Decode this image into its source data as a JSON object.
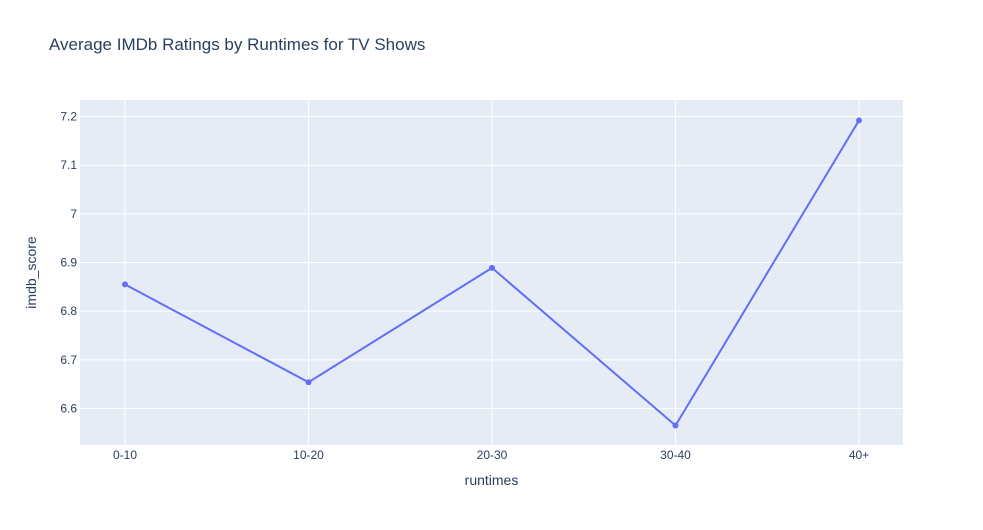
{
  "chart_data": {
    "type": "line",
    "title": "Average IMDb Ratings by Runtimes for TV Shows",
    "xlabel": "runtimes",
    "ylabel": "imdb_score",
    "categories": [
      "0-10",
      "10-20",
      "20-30",
      "30-40",
      "40+"
    ],
    "series": [
      {
        "values": [
          6.855,
          6.654,
          6.889,
          6.565,
          7.192
        ]
      }
    ],
    "ylim": [
      6.525,
      7.234
    ],
    "yticks": [
      6.6,
      6.7,
      6.8,
      6.9,
      7,
      7.1,
      7.2
    ],
    "ytick_labels": [
      "6.6",
      "6.7",
      "6.8",
      "6.9",
      "7",
      "7.1",
      "7.2"
    ],
    "grid": true,
    "colors": {
      "line": "#636efa",
      "plot_background": "#e5ecf6",
      "grid": "#ffffff",
      "text": "#2a3f5f"
    }
  }
}
